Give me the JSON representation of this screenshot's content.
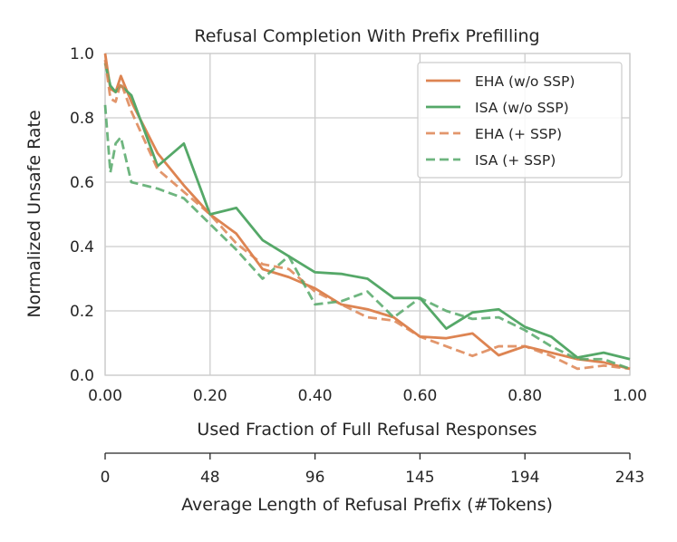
{
  "chart_data": {
    "type": "line",
    "title": "Refusal Completion With Prefix Prefilling",
    "xlabel": "Used Fraction of Full Refusal Responses",
    "ylabel": "Normalized Unsafe Rate",
    "xlim": [
      0,
      1
    ],
    "ylim": [
      0,
      1
    ],
    "xticks": [
      "0.00",
      "0.20",
      "0.40",
      "0.60",
      "0.80",
      "1.00"
    ],
    "yticks": [
      "0.0",
      "0.2",
      "0.4",
      "0.6",
      "0.8",
      "1.0"
    ],
    "grid": true,
    "legend_position": "top-right",
    "secondary_axis": {
      "label": "Average Length of Refusal Prefix (#Tokens)",
      "ticks": [
        "0",
        "48",
        "96",
        "145",
        "194",
        "243"
      ]
    },
    "colors": {
      "orange": "#dd8452",
      "green": "#55a868"
    },
    "series": [
      {
        "name": "EHA (w/o SSP)",
        "color": "#dd8452",
        "dash": "solid",
        "x": [
          0,
          0.01,
          0.02,
          0.03,
          0.05,
          0.1,
          0.15,
          0.2,
          0.25,
          0.3,
          0.35,
          0.4,
          0.45,
          0.5,
          0.55,
          0.6,
          0.65,
          0.7,
          0.75,
          0.8,
          0.85,
          0.9,
          0.95,
          1.0
        ],
        "y": [
          1.0,
          0.89,
          0.88,
          0.93,
          0.85,
          0.69,
          0.59,
          0.5,
          0.44,
          0.33,
          0.305,
          0.27,
          0.22,
          0.205,
          0.18,
          0.12,
          0.115,
          0.13,
          0.062,
          0.09,
          0.07,
          0.05,
          0.04,
          0.02
        ]
      },
      {
        "name": "ISA (w/o SSP)",
        "color": "#55a868",
        "dash": "solid",
        "x": [
          0,
          0.01,
          0.02,
          0.03,
          0.05,
          0.1,
          0.15,
          0.2,
          0.25,
          0.3,
          0.35,
          0.4,
          0.45,
          0.5,
          0.55,
          0.6,
          0.65,
          0.7,
          0.75,
          0.8,
          0.85,
          0.9,
          0.95,
          1.0
        ],
        "y": [
          0.97,
          0.9,
          0.88,
          0.9,
          0.87,
          0.65,
          0.72,
          0.5,
          0.52,
          0.42,
          0.37,
          0.32,
          0.315,
          0.3,
          0.24,
          0.24,
          0.145,
          0.195,
          0.205,
          0.15,
          0.12,
          0.055,
          0.07,
          0.05
        ]
      },
      {
        "name": "EHA (+ SSP)",
        "color": "#dd8452",
        "dash": "dashed",
        "x": [
          0,
          0.01,
          0.02,
          0.03,
          0.05,
          0.1,
          0.15,
          0.2,
          0.25,
          0.3,
          0.35,
          0.4,
          0.45,
          0.5,
          0.55,
          0.6,
          0.65,
          0.7,
          0.75,
          0.8,
          0.85,
          0.9,
          0.95,
          1.0
        ],
        "y": [
          0.98,
          0.86,
          0.85,
          0.91,
          0.82,
          0.64,
          0.57,
          0.5,
          0.41,
          0.345,
          0.33,
          0.26,
          0.22,
          0.18,
          0.17,
          0.12,
          0.09,
          0.06,
          0.09,
          0.09,
          0.06,
          0.02,
          0.03,
          0.02
        ]
      },
      {
        "name": "ISA (+ SSP)",
        "color": "#55a868",
        "dash": "dashed",
        "x": [
          0,
          0.01,
          0.02,
          0.03,
          0.05,
          0.1,
          0.15,
          0.2,
          0.25,
          0.3,
          0.35,
          0.4,
          0.45,
          0.5,
          0.55,
          0.6,
          0.65,
          0.7,
          0.75,
          0.8,
          0.85,
          0.9,
          0.95,
          1.0
        ],
        "y": [
          0.84,
          0.63,
          0.72,
          0.74,
          0.6,
          0.58,
          0.55,
          0.47,
          0.39,
          0.3,
          0.37,
          0.22,
          0.23,
          0.26,
          0.18,
          0.24,
          0.2,
          0.175,
          0.18,
          0.14,
          0.09,
          0.05,
          0.05,
          0.02
        ]
      }
    ]
  }
}
